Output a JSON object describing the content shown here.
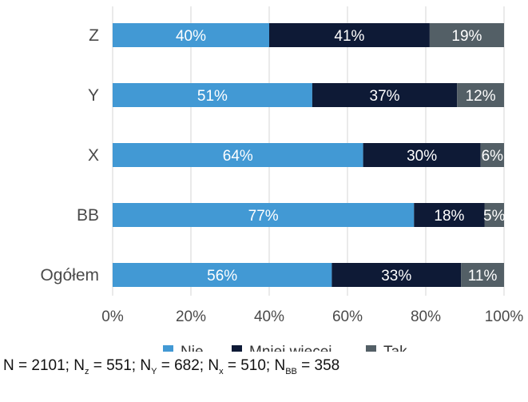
{
  "chart_data": {
    "type": "bar",
    "orientation": "horizontal",
    "stacked": true,
    "categories": [
      "Z",
      "Y",
      "X",
      "BB",
      "Ogółem"
    ],
    "series": [
      {
        "name": "Nie",
        "values": [
          40,
          51,
          64,
          77,
          56
        ],
        "labels": [
          "40%",
          "51%",
          "64%",
          "77%",
          "56%"
        ],
        "color": "#4299d4"
      },
      {
        "name": "Mniej więcej",
        "values": [
          41,
          37,
          30,
          18,
          33
        ],
        "labels": [
          "41%",
          "37%",
          "30%",
          "18%",
          "33%"
        ],
        "color": "#0e1a36"
      },
      {
        "name": "Tak",
        "values": [
          19,
          12,
          6,
          5,
          11
        ],
        "labels": [
          "19%",
          "12%",
          "6%",
          "5%",
          "11%"
        ],
        "color": "#535f66"
      }
    ],
    "xlim": [
      0,
      100
    ],
    "x_ticks": [
      "0%",
      "20%",
      "40%",
      "60%",
      "80%",
      "100%"
    ],
    "grid": "vertical",
    "legend": "bottom"
  },
  "footnote": {
    "n_total": "N = 2101",
    "n_z_prefix": "; N",
    "n_z_sub": "z",
    "n_z_value": " = 551",
    "n_y_prefix": "; N",
    "n_y_sub": "Y",
    "n_y_value": " = 682",
    "n_x_prefix": "; N",
    "n_x_sub": "x",
    "n_x_value": " = 510",
    "n_bb_prefix": "; N",
    "n_bb_sub": "BB",
    "n_bb_value": " = 358"
  }
}
